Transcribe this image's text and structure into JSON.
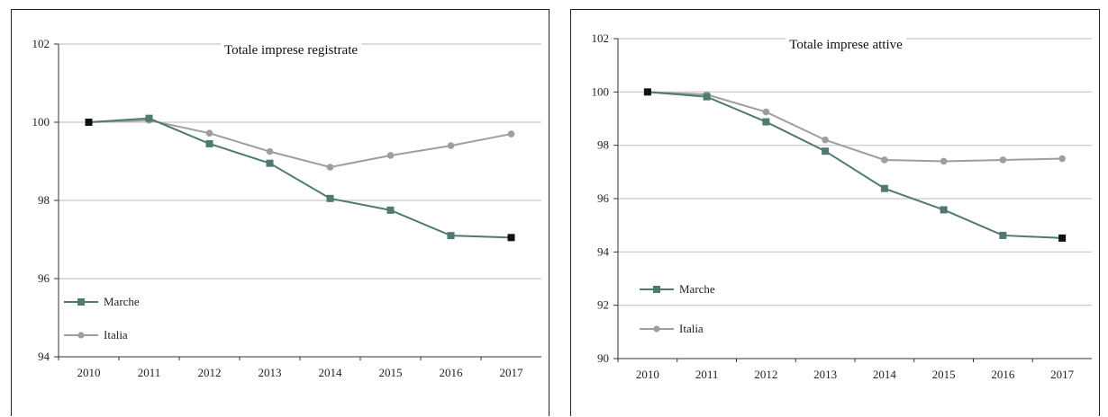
{
  "chart_data": [
    {
      "type": "line",
      "title": "Totale imprese registrate",
      "categories": [
        "2010",
        "2011",
        "2012",
        "2013",
        "2014",
        "2015",
        "2016",
        "2017"
      ],
      "ylim": [
        94,
        102
      ],
      "yticks": [
        "102",
        "100",
        "98",
        "96",
        "94"
      ],
      "grid": true,
      "legend_position": "bottom-left",
      "series": [
        {
          "name": "Marche",
          "values": [
            100.0,
            100.1,
            99.45,
            98.95,
            98.05,
            97.75,
            97.1,
            97.05
          ],
          "color": "#4f7a72",
          "marker": "square"
        },
        {
          "name": "Italia",
          "values": [
            100.0,
            100.05,
            99.72,
            99.25,
            98.85,
            99.15,
            99.4,
            99.7
          ],
          "color": "#9e9e9e",
          "marker": "circle"
        }
      ]
    },
    {
      "type": "line",
      "title": "Totale imprese attive",
      "categories": [
        "2010",
        "2011",
        "2012",
        "2013",
        "2014",
        "2015",
        "2016",
        "2017"
      ],
      "ylim": [
        90,
        102
      ],
      "yticks": [
        "102",
        "100",
        "98",
        "96",
        "94",
        "92",
        "90"
      ],
      "grid": true,
      "legend_position": "bottom-left",
      "series": [
        {
          "name": "Marche",
          "values": [
            100.0,
            99.82,
            98.88,
            97.78,
            96.38,
            95.58,
            94.62,
            94.52
          ],
          "color": "#4f7a72",
          "marker": "square"
        },
        {
          "name": "Italia",
          "values": [
            100.0,
            99.9,
            99.25,
            98.2,
            97.45,
            97.4,
            97.45,
            97.5
          ],
          "color": "#9e9e9e",
          "marker": "circle"
        }
      ]
    }
  ]
}
